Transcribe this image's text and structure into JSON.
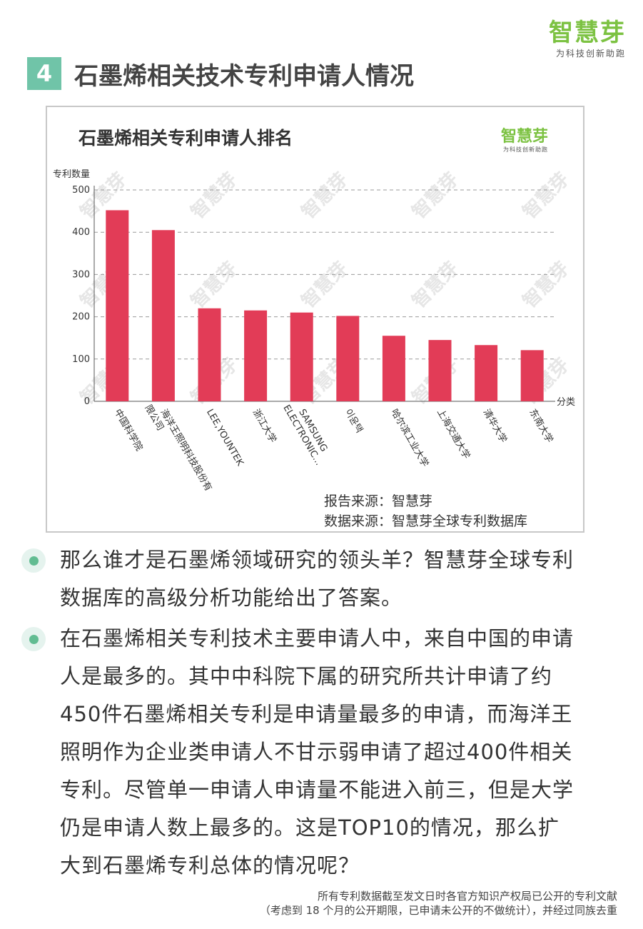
{
  "brand": {
    "name": "智慧芽",
    "tagline": "为科技创新助跑"
  },
  "section": {
    "number": "4",
    "title": "石墨烯相关技术专利申请人情况"
  },
  "chart_data": {
    "type": "bar",
    "title": "石墨烯相关专利申请人排名",
    "ylabel": "专利数量",
    "xlabel": "分类",
    "categories": [
      "中国科学院",
      "海洋王照明科技股份有限公司",
      "LEE,YOUNTEK",
      "浙江大学",
      "SAMSUNG ELECTRONIC...",
      "이윤택",
      "哈尔滨工业大学",
      "上海交通大学",
      "清华大学",
      "东南大学"
    ],
    "category_lines": [
      [
        "中国科学院"
      ],
      [
        "海洋王照明科技股份有",
        "限公司"
      ],
      [
        "LEE,YOUNTEK"
      ],
      [
        "浙江大学"
      ],
      [
        "SAMSUNG",
        "ELECTRONIC..."
      ],
      [
        "이윤택"
      ],
      [
        "哈尔滨工业大学"
      ],
      [
        "上海交通大学"
      ],
      [
        "清华大学"
      ],
      [
        "东南大学"
      ]
    ],
    "values": [
      452,
      405,
      220,
      215,
      210,
      202,
      155,
      145,
      133,
      121
    ],
    "ylim": [
      0,
      500
    ],
    "yticks": [
      0,
      100,
      200,
      300,
      400,
      500
    ],
    "grid": true,
    "bar_color": "#e23c57",
    "logo": {
      "name": "智慧芽",
      "tagline": "为科技创新助跑"
    },
    "watermark": "智慧芽",
    "sources": [
      "报告来源：智慧芽",
      "数据来源：智慧芽全球专利数据库"
    ]
  },
  "bullets": [
    {
      "lines": [
        "那么谁才是石墨烯领域研究的领头羊？智慧芽全球专利",
        "数据库的高级分析功能给出了答案。"
      ]
    },
    {
      "lines": [
        "在石墨烯相关专利技术主要申请人中，来自中国的申请",
        "人是最多的。其中中科院下属的研究所共计申请了约",
        "450件石墨烯相关专利是申请量最多的申请，而海洋王",
        "照明作为企业类申请人不甘示弱申请了超过400件相关",
        "专利。尽管单一申请人申请量不能进入前三，但是大学",
        "仍是申请人数上最多的。这是TOP10的情况，那么扩",
        "大到石墨烯专利总体的情况呢？"
      ]
    }
  ],
  "footer": {
    "line1": "所有专利数据截至发文日时各官方知识产权局已公开的专利文献",
    "line2": "（考虑到 18 个月的公开期限，已申请未公开的不做统计），并经过同族去重"
  },
  "colors": {
    "accent": "#70c4a8",
    "brand_green": "#7cc242",
    "bar": "#e23c57",
    "bullet": "#62bc92"
  }
}
